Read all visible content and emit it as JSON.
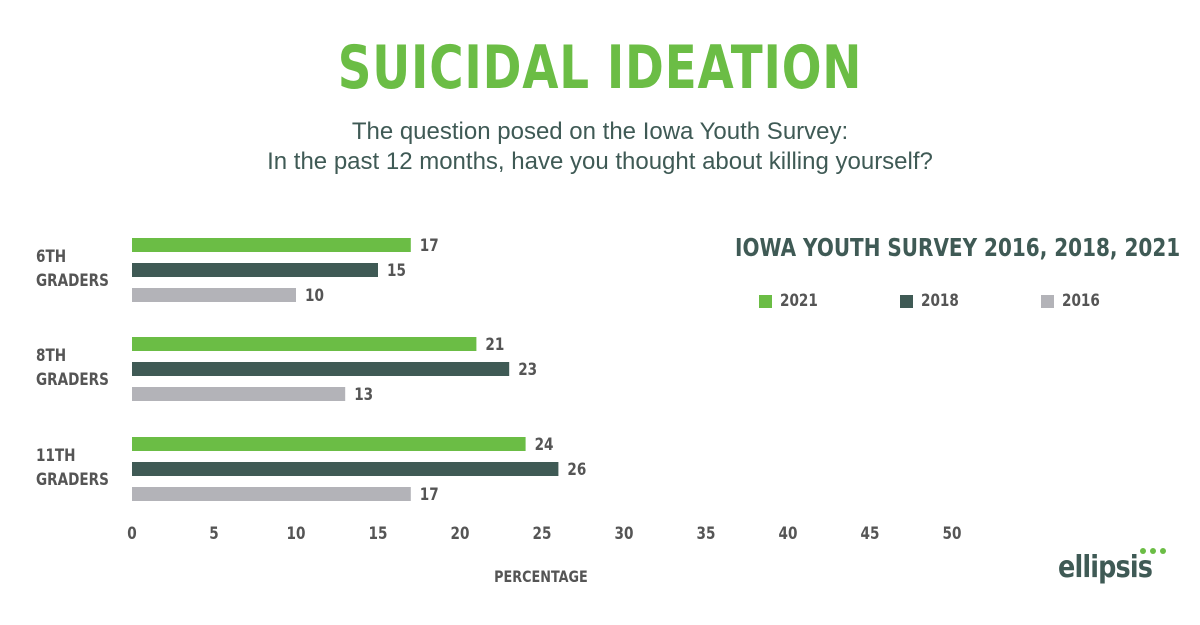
{
  "title": "SUICIDAL IDEATION",
  "subtitle_line1": "The question posed on the Iowa Youth Survey:",
  "subtitle_line2": "In the past 12 months, have you thought about killing yourself?",
  "legend": {
    "title": "IOWA YOUTH SURVEY  2016, 2018, 2021",
    "items": [
      {
        "label": "2021",
        "color": "#6bbd45"
      },
      {
        "label": "2018",
        "color": "#3f5a55"
      },
      {
        "label": "2016",
        "color": "#b3b3b8"
      }
    ]
  },
  "logo": {
    "text": "ellipsis",
    "color": "#3f5a55",
    "accent": "#6bbd45"
  },
  "chart_data": {
    "type": "bar",
    "orientation": "horizontal",
    "categories": [
      [
        "6TH",
        "GRADERS"
      ],
      [
        "8TH",
        "GRADERS"
      ],
      [
        "11TH",
        "GRADERS"
      ]
    ],
    "series": [
      {
        "name": "2021",
        "color": "#6bbd45",
        "values": [
          17,
          21,
          24
        ]
      },
      {
        "name": "2018",
        "color": "#3f5a55",
        "values": [
          15,
          23,
          26
        ]
      },
      {
        "name": "2016",
        "color": "#b3b3b8",
        "values": [
          10,
          13,
          17
        ]
      }
    ],
    "xlabel": "PERCENTAGE",
    "ylabel": "",
    "xlim": [
      0,
      50
    ],
    "xticks": [
      0,
      5,
      10,
      15,
      20,
      25,
      30,
      35,
      40,
      45,
      50
    ],
    "grid": false,
    "legend_position": "right"
  }
}
